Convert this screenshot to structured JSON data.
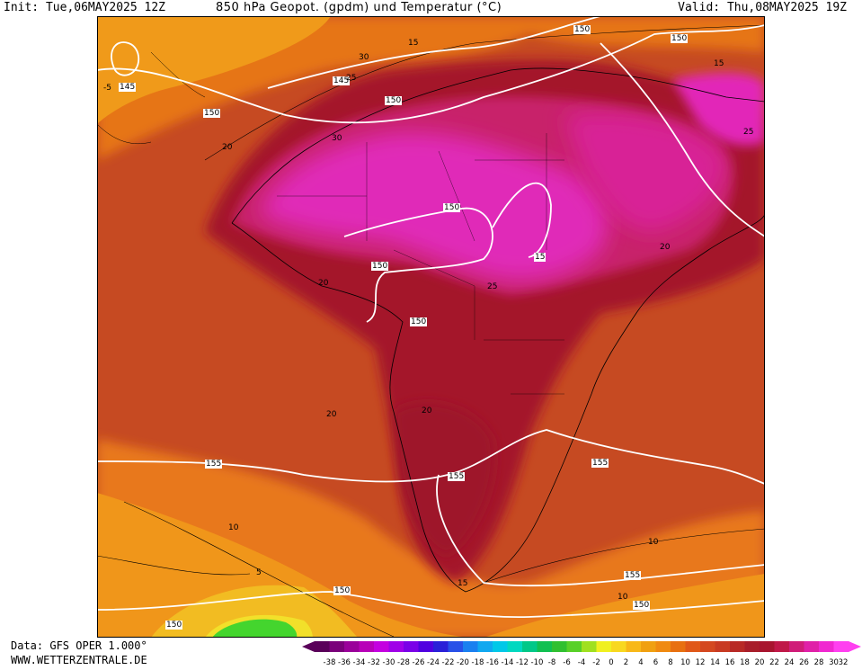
{
  "header": {
    "init": "Init: Tue,06MAY2025 12Z",
    "title": "850 hPa Geopot. (gpdm) und Temperatur (°C)",
    "valid": "Valid: Thu,08MAY2025 19Z"
  },
  "footer": {
    "source": "Data: GFS OPER 1.000°",
    "site": "WWW.WETTERZENTRALE.DE"
  },
  "colors": {
    "ocean_warm": "#c24a22",
    "continent_hot": "#a4162c",
    "sahara_peak": "#e52ec2",
    "southern_orange": "#f08a1a",
    "cold_yellow": "#f5d52a",
    "cold_green": "#44d52e"
  },
  "contour_labels": {
    "geopotential": [
      "150",
      "150",
      "145",
      "145",
      "150",
      "150",
      "150",
      "150",
      "150",
      "15",
      "155",
      "155",
      "155",
      "150",
      "155",
      "150",
      "150"
    ],
    "temperature": [
      "15",
      "25",
      "30",
      "30",
      "-5",
      "20",
      "20",
      "20",
      "20",
      "25",
      "15",
      "25",
      "20",
      "10",
      "10",
      "5",
      "10",
      "15"
    ]
  },
  "colorbar": {
    "labels": [
      "-38",
      "-36",
      "-34",
      "-32",
      "-30",
      "-28",
      "-26",
      "-24",
      "-22",
      "-20",
      "-18",
      "-16",
      "-14",
      "-12",
      "-10",
      "-8",
      "-6",
      "-4",
      "-2",
      "0",
      "2",
      "4",
      "6",
      "8",
      "10",
      "12",
      "14",
      "16",
      "18",
      "20",
      "22",
      "24",
      "26",
      "28",
      "30",
      "32"
    ],
    "colors": [
      "#5a005a",
      "#7a007a",
      "#9a009a",
      "#b800b8",
      "#c400e0",
      "#a000e8",
      "#7a00e8",
      "#5000e0",
      "#2a20d8",
      "#2850e8",
      "#1a80f0",
      "#10a8f0",
      "#00c8e8",
      "#00d8c0",
      "#00c888",
      "#10c050",
      "#30c030",
      "#58d028",
      "#a0e020",
      "#f0f020",
      "#f8d820",
      "#f8b818",
      "#f0a010",
      "#f08a10",
      "#e87010",
      "#e05818",
      "#d44820",
      "#c83a22",
      "#b82a26",
      "#a81e2a",
      "#a8142e",
      "#c01848",
      "#d01c78",
      "#e020a8",
      "#f028d0",
      "#ff40f0"
    ]
  }
}
